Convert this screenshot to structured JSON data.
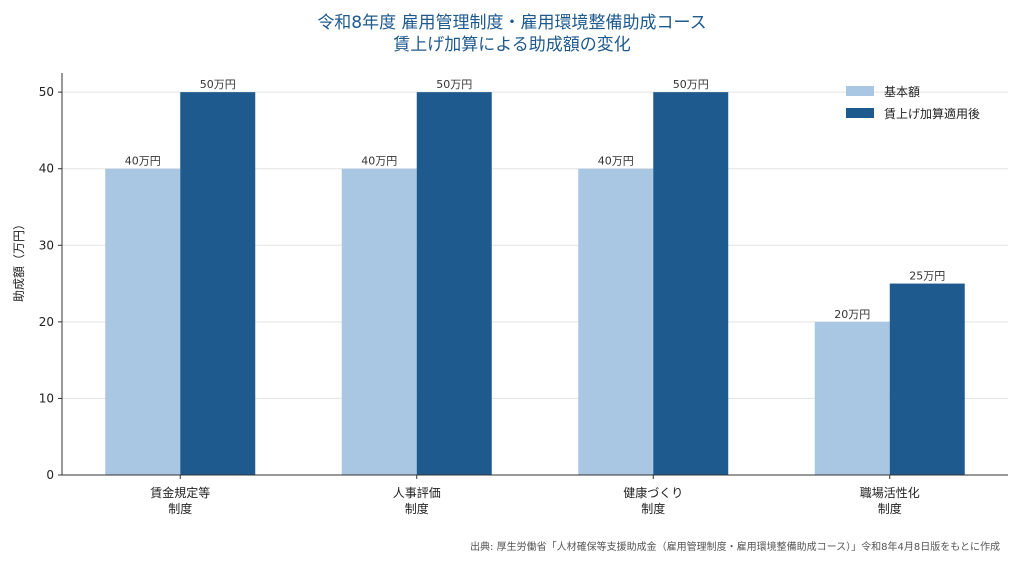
{
  "chart_data": {
    "type": "bar",
    "title_lines": [
      "令和8年度 雇用管理制度・雇用環境整備助成コース",
      "賃上げ加算による助成額の変化"
    ],
    "ylabel": "助成額（万円）",
    "xlabel": "",
    "ylim": [
      0,
      52.5
    ],
    "yticks": [
      0,
      10,
      20,
      30,
      40,
      50
    ],
    "grid": true,
    "legend_position": "top-right",
    "categories": [
      [
        "賃金規定等",
        "制度"
      ],
      [
        "人事評価",
        "制度"
      ],
      [
        "健康づくり",
        "制度"
      ],
      [
        "職場活性化",
        "制度"
      ]
    ],
    "series": [
      {
        "name": "基本額",
        "color": "#a9c6e2",
        "values": [
          40,
          40,
          40,
          20
        ],
        "labels": [
          "40万円",
          "40万円",
          "40万円",
          "20万円"
        ]
      },
      {
        "name": "賃上げ加算適用後",
        "color": "#1f5a8f",
        "values": [
          50,
          50,
          50,
          25
        ],
        "labels": [
          "50万円",
          "50万円",
          "50万円",
          "25万円"
        ]
      }
    ]
  },
  "source": "出典: 厚生労働省「人材確保等支援助成金（雇用管理制度・雇用環境整備助成コース）」令和8年4月8日版をもとに作成"
}
